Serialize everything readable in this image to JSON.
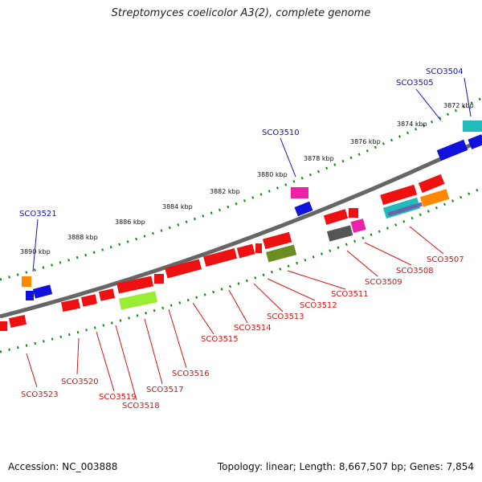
{
  "title": "Streptomyces coelicolor A3(2), complete genome",
  "footer": {
    "accession": "Accession: NC_003888",
    "summary": "Topology: linear; Length: 8,667,507 bp; Genes: 7,854"
  },
  "colors": {
    "backbone": "#777777",
    "tick": "#118811",
    "forward_label": "#1111cc",
    "reverse_label": "#dd1111",
    "gene_red": "#ee1111"
  },
  "kbp_labels": [
    "3872 kbp",
    "3874 kbp",
    "3876 kbp",
    "3878 kbp",
    "3880 kbp",
    "3882 kbp",
    "3884 kbp",
    "3886 kbp",
    "3888 kbp",
    "3890 kbp"
  ],
  "forward_genes": [
    "SCO3504",
    "SCO3505",
    "SCO3510",
    "SCO3521"
  ],
  "reverse_genes": [
    "SCO3507",
    "SCO3508",
    "SCO3509",
    "SCO3511",
    "SCO3512",
    "SCO3513",
    "SCO3514",
    "SCO3515",
    "SCO3516",
    "SCO3517",
    "SCO3518",
    "SCO3519",
    "SCO3520",
    "SCO3523"
  ]
}
